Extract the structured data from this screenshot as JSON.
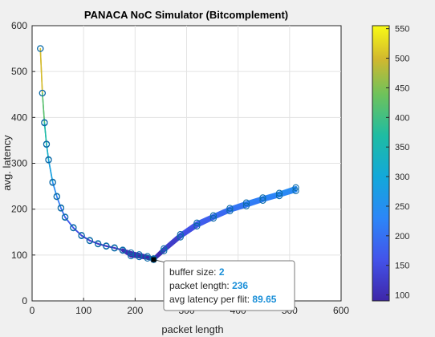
{
  "chart_data": {
    "type": "scatter",
    "title": "PANACA NoC Simulator (Bitcomplement)",
    "xlabel": "packet length",
    "ylabel": "avg. latency",
    "xlim": [
      0,
      600
    ],
    "ylim": [
      0,
      600
    ],
    "xticks": [
      0,
      100,
      200,
      300,
      400,
      500,
      600
    ],
    "yticks": [
      0,
      100,
      200,
      300,
      400,
      500,
      600
    ],
    "grid": true,
    "colormap": "parula",
    "colorbar": {
      "range": [
        90,
        555
      ],
      "ticks": [
        100,
        150,
        200,
        250,
        300,
        350,
        400,
        450,
        500,
        550
      ]
    },
    "series": [
      {
        "x": [
          16,
          20,
          24,
          28,
          32,
          40,
          48,
          56,
          64,
          80,
          96,
          112,
          128,
          144,
          160,
          176,
          192,
          208,
          224,
          236
        ],
        "y": [
          550,
          453,
          389,
          342,
          308,
          259,
          228,
          203,
          183,
          160,
          143,
          132,
          125,
          120,
          116,
          111,
          105,
          101,
          97,
          92
        ]
      },
      {
        "x": [
          16,
          20,
          24,
          28,
          32,
          40,
          48,
          56,
          64,
          80,
          96,
          112,
          128,
          144,
          160,
          176,
          192,
          208,
          224,
          236
        ],
        "y": [
          550,
          453,
          388,
          341,
          307,
          258,
          227,
          202,
          182,
          159,
          142,
          131,
          124,
          119,
          115,
          110,
          98,
          96,
          93,
          90
        ]
      },
      {
        "x": [
          236,
          256,
          288,
          320,
          352,
          384,
          416,
          448,
          480,
          512
        ],
        "y": [
          92,
          114,
          145,
          170,
          186,
          202,
          214,
          225,
          235,
          247
        ]
      },
      {
        "x": [
          236,
          256,
          288,
          320,
          352,
          384,
          416,
          448,
          480,
          512
        ],
        "y": [
          90,
          109,
          139,
          163,
          180,
          196,
          207,
          219,
          229,
          240
        ]
      }
    ],
    "datatip": {
      "x": 236,
      "y": 90,
      "rows": [
        {
          "label": "buffer size:",
          "value": "2"
        },
        {
          "label": "packet length:",
          "value": "236"
        },
        {
          "label": "avg latency per flit:",
          "value": "89.65"
        }
      ]
    }
  }
}
